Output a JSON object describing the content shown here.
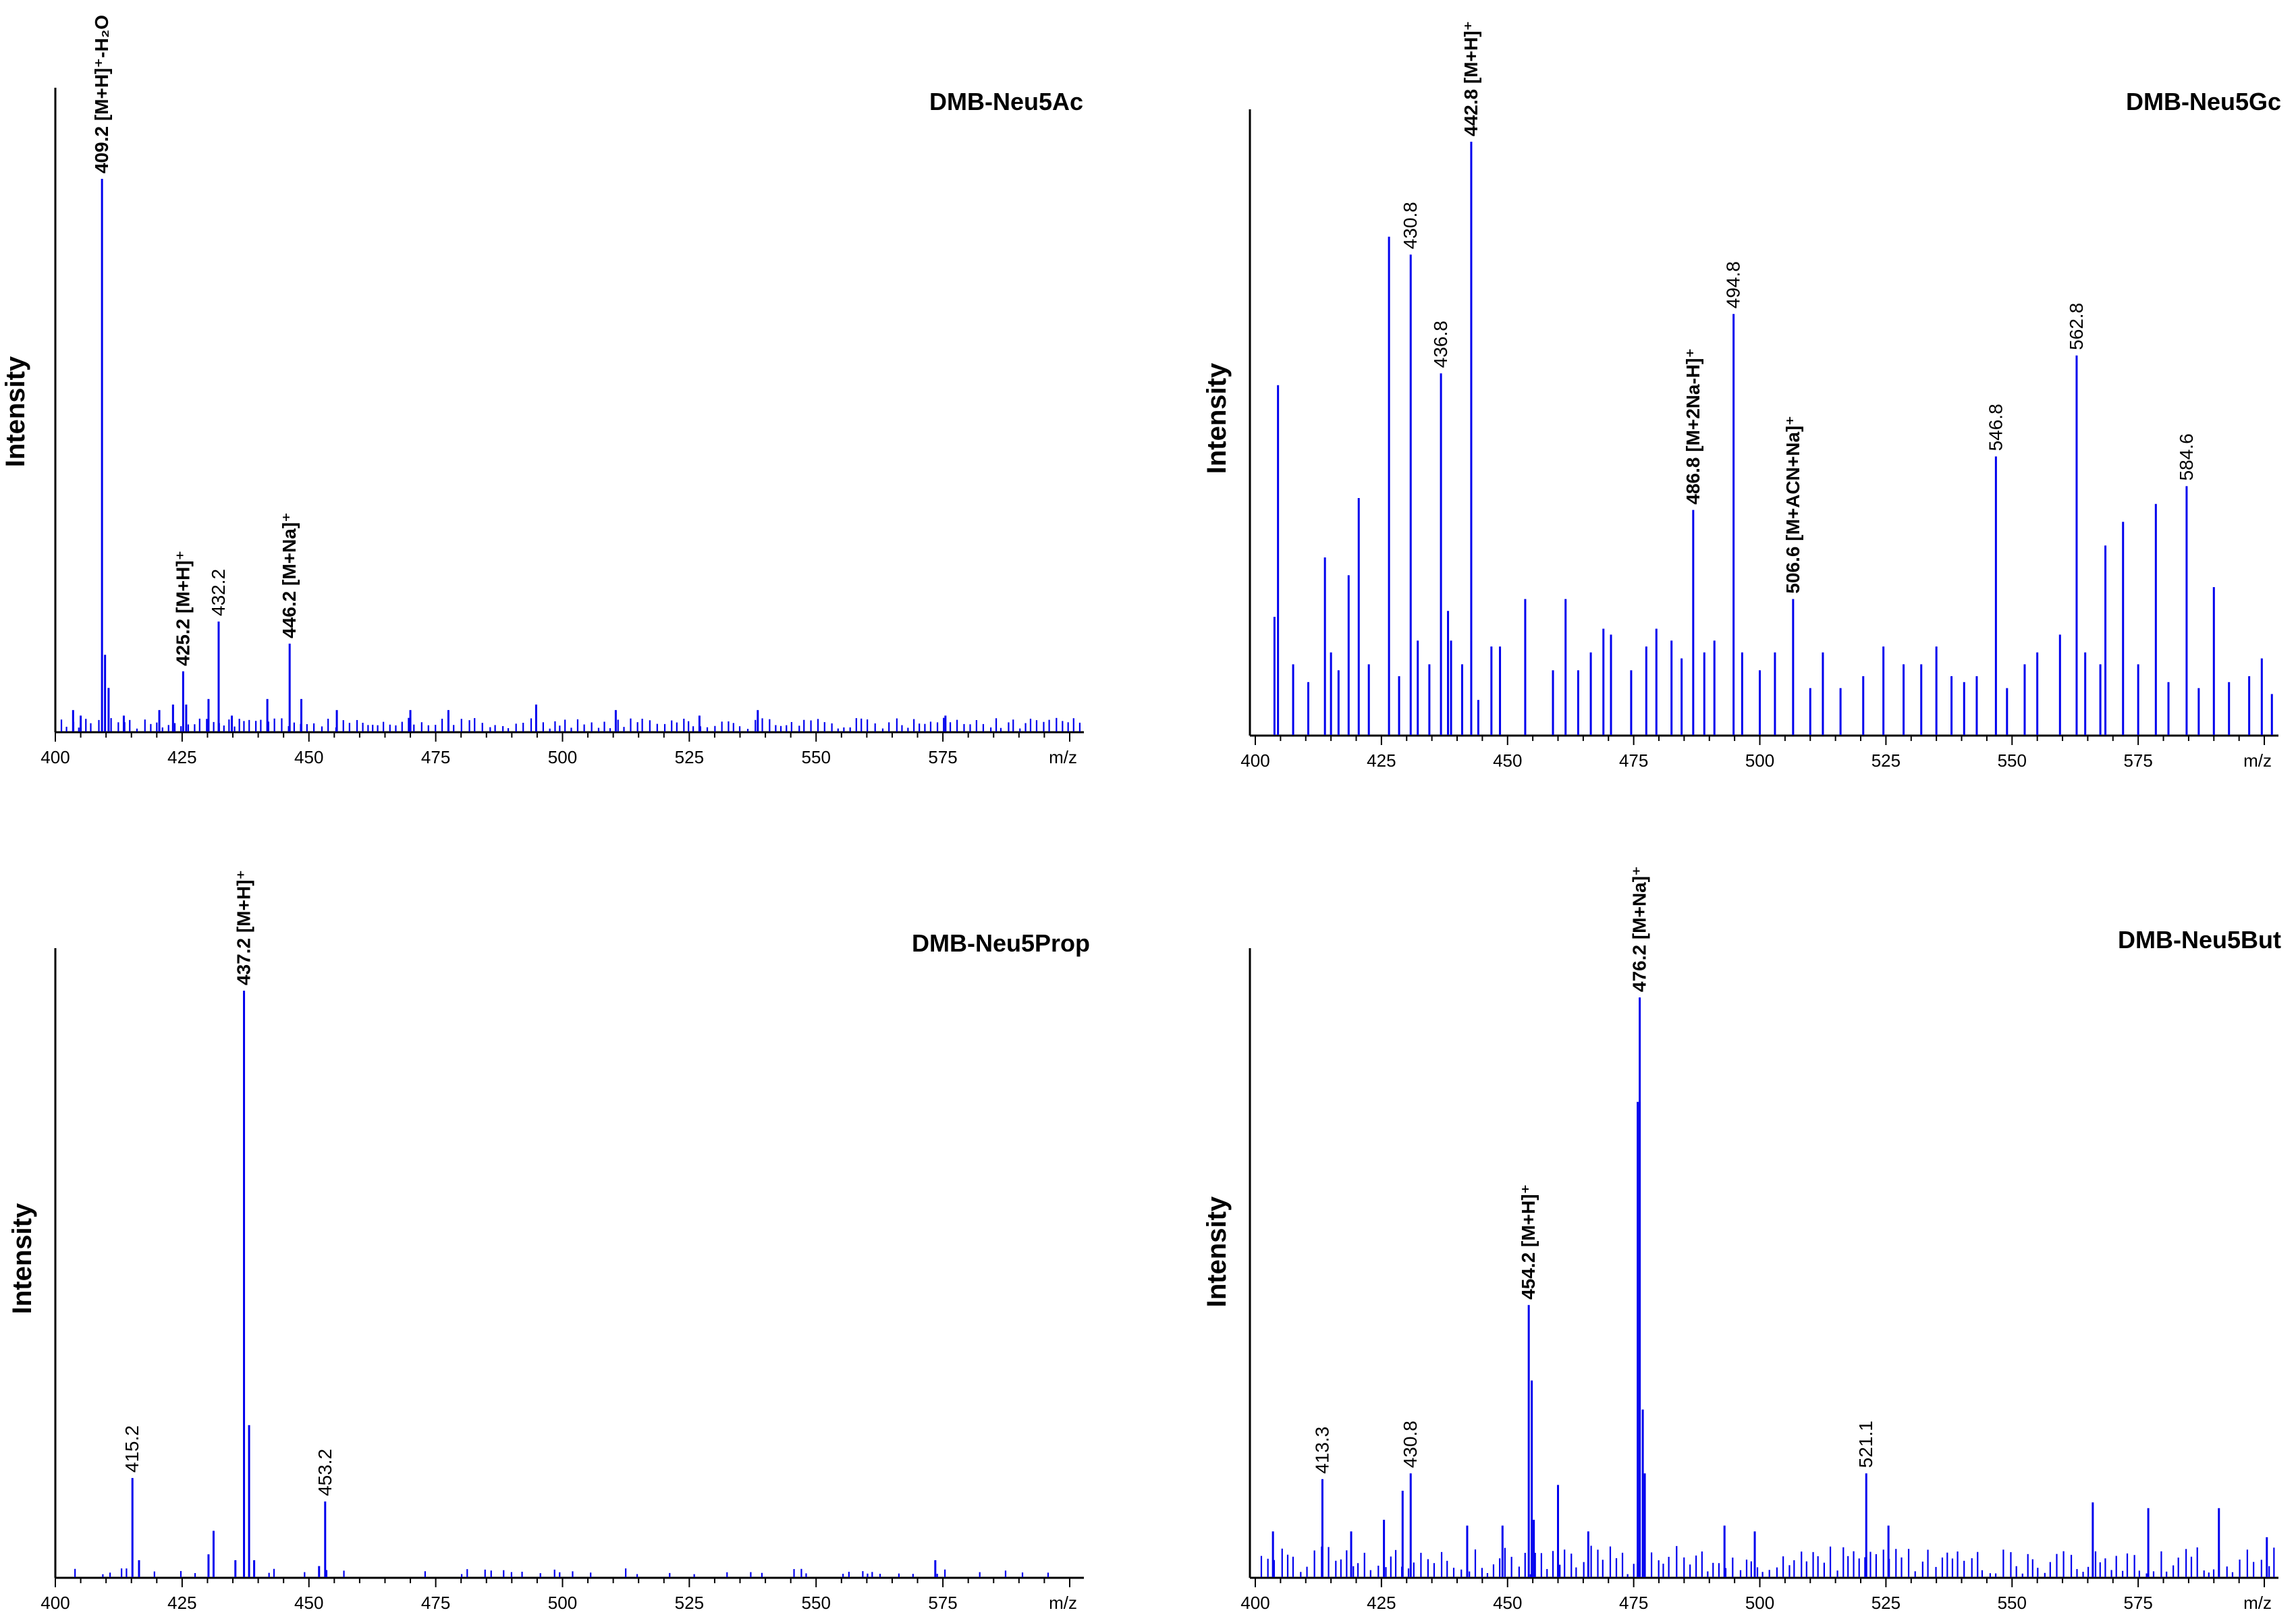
{
  "chart_data": [
    {
      "type": "bar",
      "title": "DMB-Neu5Ac",
      "ylabel": "Intensity",
      "xlabel": "m/z",
      "xlim": [
        400,
        602
      ],
      "ylim": [
        0,
        110
      ],
      "xticks": [
        400,
        425,
        450,
        475,
        500,
        525,
        550,
        575
      ],
      "color": "#0000ee",
      "peaks": [
        {
          "x": 409.2,
          "y": 100
        },
        {
          "x": 409.8,
          "y": 14
        },
        {
          "x": 410.5,
          "y": 8
        },
        {
          "x": 425.2,
          "y": 11
        },
        {
          "x": 425.8,
          "y": 5
        },
        {
          "x": 432.2,
          "y": 20
        },
        {
          "x": 446.2,
          "y": 16
        },
        {
          "x": 448.5,
          "y": 6
        },
        {
          "x": 441.8,
          "y": 6
        },
        {
          "x": 403.5,
          "y": 4
        },
        {
          "x": 405.0,
          "y": 3
        },
        {
          "x": 413.5,
          "y": 3
        },
        {
          "x": 420.5,
          "y": 4
        },
        {
          "x": 423.2,
          "y": 5
        },
        {
          "x": 430.2,
          "y": 6
        },
        {
          "x": 434.8,
          "y": 3
        },
        {
          "x": 455.5,
          "y": 4
        },
        {
          "x": 470.0,
          "y": 4
        },
        {
          "x": 477.5,
          "y": 4
        },
        {
          "x": 494.8,
          "y": 5
        },
        {
          "x": 510.5,
          "y": 4
        },
        {
          "x": 527.0,
          "y": 3
        },
        {
          "x": 538.5,
          "y": 4
        },
        {
          "x": 575.5,
          "y": 3
        }
      ],
      "noise_level": 2,
      "labels": [
        {
          "x": 409.2,
          "text": "409.2 [M+H]⁺-H₂O",
          "bold": true
        },
        {
          "x": 425.2,
          "text": "425.2 [M+H]⁺",
          "bold": true
        },
        {
          "x": 432.2,
          "text": "432.2",
          "bold": false
        },
        {
          "x": 446.2,
          "text": "446.2 [M+Na]⁺",
          "bold": true
        }
      ]
    },
    {
      "type": "bar",
      "title": "DMB-Neu5Gc",
      "ylabel": "Intensity",
      "xlabel": "m/z",
      "xlim": [
        400,
        602
      ],
      "ylim": [
        0,
        110
      ],
      "xticks": [
        400,
        425,
        450,
        475,
        500,
        525,
        550,
        575
      ],
      "color": "#0000ee",
      "peaks": [
        {
          "x": 404.5,
          "y": 59
        },
        {
          "x": 403.8,
          "y": 20
        },
        {
          "x": 407.5,
          "y": 12
        },
        {
          "x": 410.5,
          "y": 9
        },
        {
          "x": 413.8,
          "y": 30
        },
        {
          "x": 415.0,
          "y": 14
        },
        {
          "x": 416.5,
          "y": 11
        },
        {
          "x": 418.5,
          "y": 27
        },
        {
          "x": 420.5,
          "y": 40
        },
        {
          "x": 422.5,
          "y": 12
        },
        {
          "x": 426.5,
          "y": 84
        },
        {
          "x": 428.5,
          "y": 10
        },
        {
          "x": 430.8,
          "y": 81
        },
        {
          "x": 432.2,
          "y": 16
        },
        {
          "x": 434.5,
          "y": 12
        },
        {
          "x": 436.8,
          "y": 61
        },
        {
          "x": 438.2,
          "y": 21
        },
        {
          "x": 438.8,
          "y": 16
        },
        {
          "x": 441.0,
          "y": 12
        },
        {
          "x": 442.8,
          "y": 100
        },
        {
          "x": 444.2,
          "y": 6
        },
        {
          "x": 446.8,
          "y": 15
        },
        {
          "x": 448.5,
          "y": 15
        },
        {
          "x": 453.5,
          "y": 23
        },
        {
          "x": 459.0,
          "y": 11
        },
        {
          "x": 461.5,
          "y": 23
        },
        {
          "x": 464.0,
          "y": 11
        },
        {
          "x": 466.5,
          "y": 14
        },
        {
          "x": 469.0,
          "y": 18
        },
        {
          "x": 470.5,
          "y": 17
        },
        {
          "x": 474.5,
          "y": 11
        },
        {
          "x": 477.5,
          "y": 15
        },
        {
          "x": 479.5,
          "y": 18
        },
        {
          "x": 482.5,
          "y": 16
        },
        {
          "x": 484.5,
          "y": 13
        },
        {
          "x": 486.8,
          "y": 38
        },
        {
          "x": 489.0,
          "y": 14
        },
        {
          "x": 491.0,
          "y": 16
        },
        {
          "x": 494.8,
          "y": 71
        },
        {
          "x": 496.5,
          "y": 14
        },
        {
          "x": 500.0,
          "y": 11
        },
        {
          "x": 503.0,
          "y": 14
        },
        {
          "x": 506.6,
          "y": 23
        },
        {
          "x": 510.0,
          "y": 8
        },
        {
          "x": 512.5,
          "y": 14
        },
        {
          "x": 516.0,
          "y": 8
        },
        {
          "x": 520.5,
          "y": 10
        },
        {
          "x": 524.5,
          "y": 15
        },
        {
          "x": 528.5,
          "y": 12
        },
        {
          "x": 532.0,
          "y": 12
        },
        {
          "x": 535.0,
          "y": 15
        },
        {
          "x": 538.0,
          "y": 10
        },
        {
          "x": 540.5,
          "y": 9
        },
        {
          "x": 543.0,
          "y": 10
        },
        {
          "x": 546.8,
          "y": 47
        },
        {
          "x": 549.0,
          "y": 8
        },
        {
          "x": 552.5,
          "y": 12
        },
        {
          "x": 555.0,
          "y": 14
        },
        {
          "x": 559.5,
          "y": 17
        },
        {
          "x": 562.8,
          "y": 64
        },
        {
          "x": 564.5,
          "y": 14
        },
        {
          "x": 567.5,
          "y": 12
        },
        {
          "x": 568.5,
          "y": 32
        },
        {
          "x": 572.0,
          "y": 36
        },
        {
          "x": 575.0,
          "y": 12
        },
        {
          "x": 578.5,
          "y": 39
        },
        {
          "x": 581.0,
          "y": 9
        },
        {
          "x": 584.6,
          "y": 42
        },
        {
          "x": 587.0,
          "y": 8
        },
        {
          "x": 590.0,
          "y": 25
        },
        {
          "x": 593.0,
          "y": 9
        },
        {
          "x": 597.0,
          "y": 10
        },
        {
          "x": 599.5,
          "y": 13
        },
        {
          "x": 601.5,
          "y": 7
        }
      ],
      "noise_level": 0,
      "labels": [
        {
          "x": 430.8,
          "text": "430.8",
          "bold": false
        },
        {
          "x": 436.8,
          "text": "436.8",
          "bold": false
        },
        {
          "x": 442.8,
          "text": "442.8  [M+H]⁺",
          "bold": true
        },
        {
          "x": 486.8,
          "text": "486.8 [M+2Na-H]⁺",
          "bold": true
        },
        {
          "x": 494.8,
          "text": "494.8",
          "bold": false
        },
        {
          "x": 506.6,
          "text": "506.6 [M+ACN+Na]⁺",
          "bold": true
        },
        {
          "x": 546.8,
          "text": "546.8",
          "bold": false
        },
        {
          "x": 562.8,
          "text": "562.8",
          "bold": false
        },
        {
          "x": 584.6,
          "text": "584.6",
          "bold": false
        }
      ]
    },
    {
      "type": "bar",
      "title": "DMB-Neu5Prop",
      "ylabel": "Intensity",
      "xlabel": "m/z",
      "xlim": [
        400,
        602
      ],
      "ylim": [
        0,
        110
      ],
      "xticks": [
        400,
        425,
        450,
        475,
        500,
        525,
        550,
        575
      ],
      "color": "#0000ee",
      "peaks": [
        {
          "x": 415.2,
          "y": 17
        },
        {
          "x": 437.2,
          "y": 100
        },
        {
          "x": 438.2,
          "y": 26
        },
        {
          "x": 439.2,
          "y": 3
        },
        {
          "x": 453.2,
          "y": 13
        },
        {
          "x": 431.2,
          "y": 8
        },
        {
          "x": 430.2,
          "y": 4
        },
        {
          "x": 435.5,
          "y": 3
        },
        {
          "x": 416.5,
          "y": 3
        },
        {
          "x": 452.0,
          "y": 2
        },
        {
          "x": 573.5,
          "y": 3
        }
      ],
      "noise_level": 1,
      "labels": [
        {
          "x": 415.2,
          "text": "415.2",
          "bold": false
        },
        {
          "x": 437.2,
          "text": "437.2 [M+H]⁺",
          "bold": true
        },
        {
          "x": 453.2,
          "text": "453.2",
          "bold": false
        }
      ]
    },
    {
      "type": "bar",
      "title": "DMB-Neu5But",
      "ylabel": "Intensity",
      "xlabel": "m/z",
      "xlim": [
        400,
        602
      ],
      "ylim": [
        0,
        110
      ],
      "xticks": [
        400,
        425,
        450,
        475,
        500,
        525,
        550,
        575
      ],
      "color": "#0000ee",
      "peaks": [
        {
          "x": 476.2,
          "y": 100
        },
        {
          "x": 475.8,
          "y": 82
        },
        {
          "x": 476.8,
          "y": 29
        },
        {
          "x": 477.2,
          "y": 18
        },
        {
          "x": 454.2,
          "y": 47
        },
        {
          "x": 454.8,
          "y": 34
        },
        {
          "x": 455.2,
          "y": 10
        },
        {
          "x": 413.3,
          "y": 17
        },
        {
          "x": 430.8,
          "y": 18
        },
        {
          "x": 429.2,
          "y": 15
        },
        {
          "x": 521.1,
          "y": 18
        },
        {
          "x": 460.0,
          "y": 16
        },
        {
          "x": 403.5,
          "y": 8
        },
        {
          "x": 419.0,
          "y": 8
        },
        {
          "x": 425.5,
          "y": 10
        },
        {
          "x": 442.0,
          "y": 9
        },
        {
          "x": 449.0,
          "y": 9
        },
        {
          "x": 466.0,
          "y": 8
        },
        {
          "x": 493.0,
          "y": 9
        },
        {
          "x": 499.0,
          "y": 8
        },
        {
          "x": 525.5,
          "y": 9
        },
        {
          "x": 566.0,
          "y": 13
        },
        {
          "x": 577.0,
          "y": 12
        },
        {
          "x": 591.0,
          "y": 12
        },
        {
          "x": 600.5,
          "y": 7
        }
      ],
      "noise_level": 5,
      "labels": [
        {
          "x": 413.3,
          "text": "413.3",
          "bold": false
        },
        {
          "x": 430.8,
          "text": "430.8",
          "bold": false
        },
        {
          "x": 454.2,
          "text": "454.2 [M+H]⁺",
          "bold": true
        },
        {
          "x": 476.2,
          "text": "476.2 [M+Na]⁺",
          "bold": true
        },
        {
          "x": 521.1,
          "text": "521.1",
          "bold": false
        }
      ]
    }
  ]
}
